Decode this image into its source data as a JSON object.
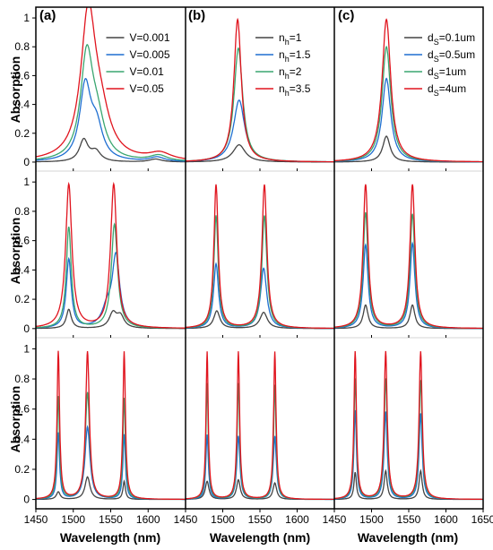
{
  "figure": {
    "xlabel": "Wavelength (nm)",
    "ylabel": "Absorption",
    "panel_labels": [
      "(a)",
      "(b)",
      "(c)"
    ],
    "x_ticks": [
      "1450",
      "1500",
      "1550",
      "1600",
      "1450",
      "1500",
      "1550",
      "1600",
      "1450",
      "1500",
      "1550",
      "1600",
      "1650"
    ],
    "y_ticks": [
      "0",
      "0.2",
      "0.4",
      "0.6",
      "0.8",
      "1"
    ]
  },
  "chart_data": [
    {
      "type": "line",
      "panel": "a",
      "row": 1,
      "xlim": [
        1450,
        1650
      ],
      "ylim": [
        -0.05,
        1.05
      ],
      "xlabel": "Wavelength (nm)",
      "ylabel": "Absorption",
      "legend": {
        "placement": "top-right",
        "entries": [
          {
            "main": "V=0.001",
            "sub": "",
            "rest": ""
          },
          {
            "main": "V=0.005",
            "sub": "",
            "rest": ""
          },
          {
            "main": "V=0.01",
            "sub": "",
            "rest": ""
          },
          {
            "main": "V=0.05",
            "sub": "",
            "rest": ""
          }
        ]
      },
      "series": [
        {
          "name": "V=0.001",
          "color": "#444444",
          "peaks": [
            {
              "x": 1514,
              "h": 0.15,
              "w": 7
            },
            {
              "x": 1530,
              "h": 0.07,
              "w": 8
            },
            {
              "x": 1610,
              "h": 0.02,
              "w": 10
            }
          ]
        },
        {
          "name": "V=0.005",
          "color": "#1f6fd1",
          "peaks": [
            {
              "x": 1516,
              "h": 0.51,
              "w": 9
            },
            {
              "x": 1531,
              "h": 0.22,
              "w": 10
            },
            {
              "x": 1612,
              "h": 0.03,
              "w": 12
            }
          ]
        },
        {
          "name": "V=0.01",
          "color": "#3aa670",
          "peaks": [
            {
              "x": 1518,
              "h": 0.71,
              "w": 10
            },
            {
              "x": 1532,
              "h": 0.24,
              "w": 12
            },
            {
              "x": 1614,
              "h": 0.04,
              "w": 14
            }
          ]
        },
        {
          "name": "V=0.05",
          "color": "#e0141e",
          "peaks": [
            {
              "x": 1520,
              "h": 0.98,
              "w": 12
            },
            {
              "x": 1536,
              "h": 0.26,
              "w": 16
            },
            {
              "x": 1616,
              "h": 0.05,
              "w": 18
            }
          ]
        }
      ]
    },
    {
      "type": "line",
      "panel": "b",
      "row": 1,
      "xlim": [
        1450,
        1650
      ],
      "ylim": [
        -0.05,
        1.05
      ],
      "legend": {
        "placement": "top-right",
        "entries": [
          {
            "main": "n",
            "sub": "h",
            "rest": "=1"
          },
          {
            "main": "n",
            "sub": "h",
            "rest": "=1.5"
          },
          {
            "main": "n",
            "sub": "h",
            "rest": "=2"
          },
          {
            "main": "n",
            "sub": "h",
            "rest": "=3.5"
          }
        ]
      },
      "series": [
        {
          "name": "nh=1",
          "color": "#444444",
          "peaks": [
            {
              "x": 1522,
              "h": 0.12,
              "w": 10
            }
          ]
        },
        {
          "name": "nh=1.5",
          "color": "#1f6fd1",
          "peaks": [
            {
              "x": 1522,
              "h": 0.43,
              "w": 9
            }
          ]
        },
        {
          "name": "nh=2",
          "color": "#3aa670",
          "peaks": [
            {
              "x": 1521,
              "h": 0.79,
              "w": 7
            }
          ]
        },
        {
          "name": "nh=3.5",
          "color": "#e0141e",
          "peaks": [
            {
              "x": 1520,
              "h": 0.99,
              "w": 6
            }
          ]
        }
      ]
    },
    {
      "type": "line",
      "panel": "c",
      "row": 1,
      "xlim": [
        1450,
        1650
      ],
      "ylim": [
        -0.05,
        1.05
      ],
      "legend": {
        "placement": "top-right",
        "entries": [
          {
            "main": "d",
            "sub": "S",
            "rest": "=0.1um"
          },
          {
            "main": "d",
            "sub": "S",
            "rest": "=0.5um"
          },
          {
            "main": "d",
            "sub": "S",
            "rest": "=1um"
          },
          {
            "main": "d",
            "sub": "S",
            "rest": "=4um"
          }
        ]
      },
      "series": [
        {
          "name": "dS=0.1um",
          "color": "#444444",
          "peaks": [
            {
              "x": 1520,
              "h": 0.18,
              "w": 6
            }
          ]
        },
        {
          "name": "dS=0.5um",
          "color": "#1f6fd1",
          "peaks": [
            {
              "x": 1520,
              "h": 0.58,
              "w": 7
            }
          ]
        },
        {
          "name": "dS=1um",
          "color": "#3aa670",
          "peaks": [
            {
              "x": 1520,
              "h": 0.8,
              "w": 7
            }
          ]
        },
        {
          "name": "dS=4um",
          "color": "#e0141e",
          "peaks": [
            {
              "x": 1520,
              "h": 0.99,
              "w": 7
            }
          ]
        }
      ]
    },
    {
      "type": "line",
      "panel": "a",
      "row": 2,
      "xlim": [
        1450,
        1650
      ],
      "ylim": [
        -0.05,
        1.05
      ],
      "ylabel": "Absorption",
      "series": [
        {
          "name": "V=0.001",
          "color": "#444444",
          "peaks": [
            {
              "x": 1494,
              "h": 0.13,
              "w": 4
            },
            {
              "x": 1553,
              "h": 0.1,
              "w": 6
            },
            {
              "x": 1563,
              "h": 0.08,
              "w": 6
            }
          ]
        },
        {
          "name": "V=0.005",
          "color": "#1f6fd1",
          "peaks": [
            {
              "x": 1494,
              "h": 0.47,
              "w": 4
            },
            {
              "x": 1557,
              "h": 0.48,
              "w": 6
            },
            {
              "x": 1545,
              "h": 0.12,
              "w": 8
            }
          ]
        },
        {
          "name": "V=0.01",
          "color": "#3aa670",
          "peaks": [
            {
              "x": 1494,
              "h": 0.69,
              "w": 4
            },
            {
              "x": 1555,
              "h": 0.71,
              "w": 5
            }
          ]
        },
        {
          "name": "V=0.05",
          "color": "#e0141e",
          "peaks": [
            {
              "x": 1494,
              "h": 0.98,
              "w": 5
            },
            {
              "x": 1554,
              "h": 0.98,
              "w": 5
            }
          ]
        }
      ]
    },
    {
      "type": "line",
      "panel": "b",
      "row": 2,
      "xlim": [
        1450,
        1650
      ],
      "ylim": [
        -0.05,
        1.05
      ],
      "series": [
        {
          "name": "nh=1",
          "color": "#444444",
          "peaks": [
            {
              "x": 1492,
              "h": 0.12,
              "w": 5
            },
            {
              "x": 1555,
              "h": 0.11,
              "w": 6
            }
          ]
        },
        {
          "name": "nh=1.5",
          "color": "#1f6fd1",
          "peaks": [
            {
              "x": 1491,
              "h": 0.44,
              "w": 4
            },
            {
              "x": 1555,
              "h": 0.41,
              "w": 5
            }
          ]
        },
        {
          "name": "nh=2",
          "color": "#3aa670",
          "peaks": [
            {
              "x": 1491,
              "h": 0.77,
              "w": 3.5
            },
            {
              "x": 1556,
              "h": 0.77,
              "w": 4
            }
          ]
        },
        {
          "name": "nh=3.5",
          "color": "#e0141e",
          "peaks": [
            {
              "x": 1491,
              "h": 0.98,
              "w": 3.5
            },
            {
              "x": 1556,
              "h": 0.98,
              "w": 4
            }
          ]
        }
      ]
    },
    {
      "type": "line",
      "panel": "c",
      "row": 2,
      "xlim": [
        1450,
        1650
      ],
      "ylim": [
        -0.05,
        1.05
      ],
      "series": [
        {
          "name": "dS=0.1um",
          "color": "#444444",
          "peaks": [
            {
              "x": 1492,
              "h": 0.16,
              "w": 4
            },
            {
              "x": 1555,
              "h": 0.16,
              "w": 4
            }
          ]
        },
        {
          "name": "dS=0.5um",
          "color": "#1f6fd1",
          "peaks": [
            {
              "x": 1492,
              "h": 0.57,
              "w": 4
            },
            {
              "x": 1555,
              "h": 0.58,
              "w": 4
            }
          ]
        },
        {
          "name": "dS=1um",
          "color": "#3aa670",
          "peaks": [
            {
              "x": 1492,
              "h": 0.79,
              "w": 4
            },
            {
              "x": 1555,
              "h": 0.78,
              "w": 4
            }
          ]
        },
        {
          "name": "dS=4um",
          "color": "#e0141e",
          "peaks": [
            {
              "x": 1492,
              "h": 0.98,
              "w": 4
            },
            {
              "x": 1555,
              "h": 0.98,
              "w": 4
            }
          ]
        }
      ]
    },
    {
      "type": "line",
      "panel": "a",
      "row": 3,
      "xlim": [
        1450,
        1650
      ],
      "ylim": [
        -0.05,
        1.05
      ],
      "ylabel": "Absorption",
      "xlabel": "Wavelength (nm)",
      "series": [
        {
          "name": "V=0.001",
          "color": "#444444",
          "peaks": [
            {
              "x": 1480,
              "h": 0.05,
              "w": 3
            },
            {
              "x": 1519,
              "h": 0.15,
              "w": 4
            },
            {
              "x": 1568,
              "h": 0.12,
              "w": 2
            }
          ]
        },
        {
          "name": "V=0.005",
          "color": "#1f6fd1",
          "peaks": [
            {
              "x": 1480,
              "h": 0.44,
              "w": 2
            },
            {
              "x": 1519,
              "h": 0.48,
              "w": 4
            },
            {
              "x": 1568,
              "h": 0.43,
              "w": 2
            }
          ]
        },
        {
          "name": "V=0.01",
          "color": "#3aa670",
          "peaks": [
            {
              "x": 1480,
              "h": 0.68,
              "w": 2
            },
            {
              "x": 1519,
              "h": 0.71,
              "w": 3.5
            },
            {
              "x": 1568,
              "h": 0.67,
              "w": 2
            }
          ]
        },
        {
          "name": "V=0.05",
          "color": "#e0141e",
          "peaks": [
            {
              "x": 1480,
              "h": 0.98,
              "w": 2
            },
            {
              "x": 1519,
              "h": 0.98,
              "w": 3
            },
            {
              "x": 1568,
              "h": 0.98,
              "w": 2
            }
          ]
        }
      ]
    },
    {
      "type": "line",
      "panel": "b",
      "row": 3,
      "xlim": [
        1450,
        1650
      ],
      "ylim": [
        -0.05,
        1.05
      ],
      "xlabel": "Wavelength (nm)",
      "series": [
        {
          "name": "nh=1",
          "color": "#444444",
          "peaks": [
            {
              "x": 1479,
              "h": 0.12,
              "w": 3
            },
            {
              "x": 1521,
              "h": 0.13,
              "w": 3
            },
            {
              "x": 1570,
              "h": 0.11,
              "w": 3
            }
          ]
        },
        {
          "name": "nh=1.5",
          "color": "#1f6fd1",
          "peaks": [
            {
              "x": 1479,
              "h": 0.43,
              "w": 2
            },
            {
              "x": 1521,
              "h": 0.42,
              "w": 2.5
            },
            {
              "x": 1570,
              "h": 0.42,
              "w": 2.5
            }
          ]
        },
        {
          "name": "nh=2",
          "color": "#3aa670",
          "peaks": [
            {
              "x": 1479,
              "h": 0.77,
              "w": 1.8
            },
            {
              "x": 1521,
              "h": 0.77,
              "w": 2
            },
            {
              "x": 1570,
              "h": 0.76,
              "w": 2
            }
          ]
        },
        {
          "name": "nh=3.5",
          "color": "#e0141e",
          "peaks": [
            {
              "x": 1479,
              "h": 0.98,
              "w": 1.8
            },
            {
              "x": 1521,
              "h": 0.98,
              "w": 2
            },
            {
              "x": 1570,
              "h": 0.98,
              "w": 2
            }
          ]
        }
      ]
    },
    {
      "type": "line",
      "panel": "c",
      "row": 3,
      "xlim": [
        1450,
        1650
      ],
      "ylim": [
        -0.05,
        1.05
      ],
      "xlabel": "Wavelength (nm)",
      "series": [
        {
          "name": "dS=0.1um",
          "color": "#444444",
          "peaks": [
            {
              "x": 1478,
              "h": 0.18,
              "w": 2
            },
            {
              "x": 1519,
              "h": 0.19,
              "w": 2.5
            },
            {
              "x": 1566,
              "h": 0.19,
              "w": 2.5
            }
          ]
        },
        {
          "name": "dS=0.5um",
          "color": "#1f6fd1",
          "peaks": [
            {
              "x": 1478,
              "h": 0.59,
              "w": 2
            },
            {
              "x": 1519,
              "h": 0.58,
              "w": 2.5
            },
            {
              "x": 1566,
              "h": 0.57,
              "w": 2.5
            }
          ]
        },
        {
          "name": "dS=1um",
          "color": "#3aa670",
          "peaks": [
            {
              "x": 1478,
              "h": 0.8,
              "w": 2
            },
            {
              "x": 1519,
              "h": 0.8,
              "w": 2.5
            },
            {
              "x": 1566,
              "h": 0.79,
              "w": 2.5
            }
          ]
        },
        {
          "name": "dS=4um",
          "color": "#e0141e",
          "peaks": [
            {
              "x": 1478,
              "h": 0.98,
              "w": 2
            },
            {
              "x": 1519,
              "h": 0.98,
              "w": 2.5
            },
            {
              "x": 1566,
              "h": 0.98,
              "w": 2.5
            }
          ]
        }
      ]
    }
  ]
}
